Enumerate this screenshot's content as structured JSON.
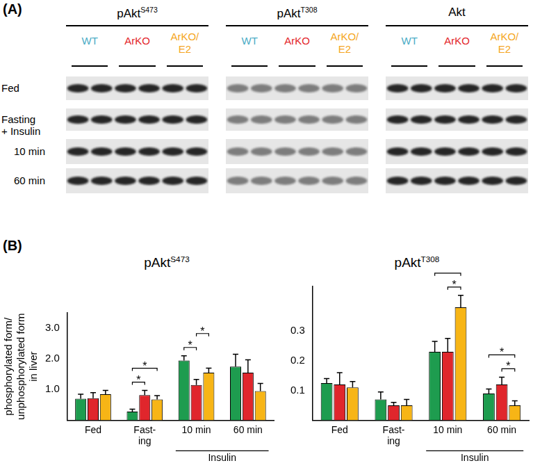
{
  "panel_labels": [
    "(A)",
    "(B)"
  ],
  "blot": {
    "columns": [
      {
        "text": "pAkt",
        "superscript": "S473"
      },
      {
        "text": "pAkt",
        "superscript": "T308"
      },
      {
        "text": "Akt"
      }
    ],
    "groups": [
      {
        "name": "WT",
        "color": "#4bacc6"
      },
      {
        "name": "ArKO",
        "color": "#e3262b"
      },
      {
        "name": "ArKO/E2",
        "color": "#f5a623"
      }
    ],
    "rows": [
      "Fed",
      "Fasting",
      "10 min",
      "60 min"
    ],
    "row_header": {
      "text": "+ Insulin",
      "before": "10 min"
    }
  },
  "chart_data": [
    {
      "type": "bar",
      "title": "pAkt",
      "title_superscript": "S473",
      "y_label": [
        "phosphorylated form/",
        "unphosphorylated form",
        "in liver"
      ],
      "categories": [
        "Fed",
        [
          "Fast-",
          "ing"
        ],
        "10 min",
        "60 min"
      ],
      "series": [
        {
          "name": "WT",
          "color": "#1e9c4f",
          "values": [
            0.7,
            0.28,
            1.95,
            1.75
          ],
          "errors": [
            0.15,
            0.08,
            0.15,
            0.4
          ]
        },
        {
          "name": "ArKO",
          "color": "#e0262c",
          "values": [
            0.72,
            0.82,
            1.15,
            1.55
          ],
          "errors": [
            0.18,
            0.15,
            0.18,
            0.42
          ]
        },
        {
          "name": "ArKO/E2",
          "color": "#f7b516",
          "values": [
            0.85,
            0.68,
            1.55,
            0.95
          ],
          "errors": [
            0.12,
            0.12,
            0.15,
            0.25
          ]
        }
      ],
      "ylim": [
        0,
        3.5
      ],
      "yticks": [
        {
          "value": 1,
          "label": "1.0"
        },
        {
          "value": 2,
          "label": "2.0"
        },
        {
          "value": 3,
          "label": "3.0"
        }
      ],
      "grid": false,
      "category_group": {
        "text": "Insulin",
        "categories": [
          "10 min",
          "60 min"
        ]
      },
      "significance": [
        {
          "category": [
            "Fast-",
            "ing"
          ],
          "between": [
            "WT",
            "ArKO"
          ],
          "text": "*"
        },
        {
          "category": [
            "Fast-",
            "ing"
          ],
          "between": [
            "WT",
            "ArKO/E2"
          ],
          "text": "*"
        },
        {
          "category": "10 min",
          "between": [
            "WT",
            "ArKO"
          ],
          "text": "*"
        },
        {
          "category": "10 min",
          "between": [
            "ArKO",
            "ArKO/E2"
          ],
          "text": "*"
        }
      ]
    },
    {
      "type": "bar",
      "title": "pAkt",
      "title_superscript": "T308",
      "categories": [
        "Fed",
        [
          "Fast-",
          "ing"
        ],
        "10 min",
        "60 min"
      ],
      "series": [
        {
          "name": "WT",
          "color": "#1e9c4f",
          "values": [
            0.125,
            0.07,
            0.23,
            0.09
          ],
          "errors": [
            0.015,
            0.025,
            0.035,
            0.015
          ]
        },
        {
          "name": "ArKO",
          "color": "#e0262c",
          "values": [
            0.12,
            0.05,
            0.23,
            0.12
          ],
          "errors": [
            0.04,
            0.01,
            0.045,
            0.025
          ]
        },
        {
          "name": "ArKO/E2",
          "color": "#f7b516",
          "values": [
            0.11,
            0.05,
            0.38,
            0.05
          ],
          "errors": [
            0.02,
            0.02,
            0.04,
            0.015
          ]
        }
      ],
      "ylim": [
        0,
        0.45
      ],
      "yticks": [
        0.1,
        0.2,
        0.3
      ],
      "grid": false,
      "category_group": {
        "text": "Insulin",
        "categories": [
          "10 min",
          "60 min"
        ]
      },
      "significance": [
        {
          "category": "10 min",
          "between": [
            "ArKO",
            "ArKO/E2"
          ],
          "text": "*"
        },
        {
          "category": "10 min",
          "between": [
            "WT",
            "ArKO/E2"
          ],
          "text": "*"
        },
        {
          "category": "60 min",
          "between": [
            "ArKO",
            "ArKO/E2"
          ],
          "text": "*"
        },
        {
          "category": "60 min",
          "between": [
            "WT",
            "ArKO/E2"
          ],
          "text": "*"
        }
      ]
    }
  ]
}
